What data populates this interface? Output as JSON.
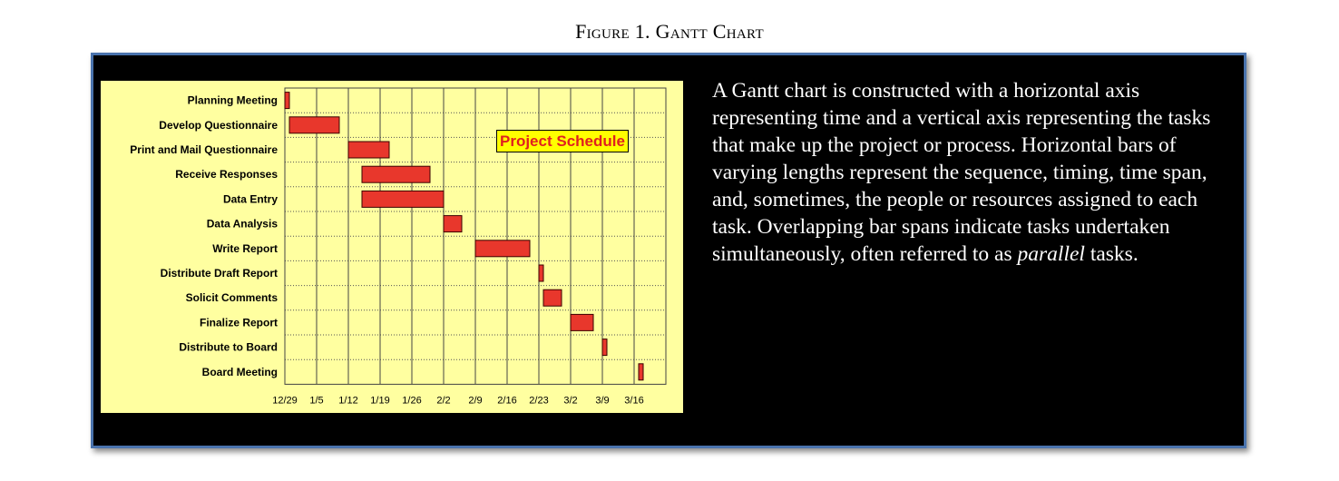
{
  "figure_title": "Figure 1. Gantt Chart",
  "description": {
    "before": "A Gantt chart is constructed with a horizontal axis representing time and a vertical axis representing the tasks that make up the project or process. Horizontal bars of varying lengths represent the sequence, timing, time span, and, sometimes, the people or resources assigned to each task. Overlapping bar spans indicate tasks undertaken simultaneously, often referred to as ",
    "emphasis": "parallel",
    "after": " tasks."
  },
  "colors": {
    "frame_background": "#000000",
    "frame_border": "#4a73ad",
    "chart_background": "#ffffa0",
    "bar_fill": "#e8372c",
    "title_box_fill": "#ffff00",
    "title_text": "#e02020"
  },
  "chart_data": {
    "type": "bar",
    "orientation": "horizontal",
    "title": "Project Schedule",
    "xlabel": "",
    "ylabel": "",
    "x_ticks": [
      "12/29",
      "1/5",
      "1/12",
      "1/19",
      "1/26",
      "2/2",
      "2/9",
      "2/16",
      "2/23",
      "3/2",
      "3/9",
      "3/16"
    ],
    "xlim": [
      "12/29",
      "3/23"
    ],
    "grid": true,
    "tasks": [
      {
        "name": "Planning Meeting",
        "start": "12/29",
        "end": "12/30"
      },
      {
        "name": "Develop Questionnaire",
        "start": "12/30",
        "end": "1/10"
      },
      {
        "name": "Print and Mail Questionnaire",
        "start": "1/12",
        "end": "1/21"
      },
      {
        "name": "Receive Responses",
        "start": "1/15",
        "end": "1/30"
      },
      {
        "name": "Data Entry",
        "start": "1/15",
        "end": "2/2"
      },
      {
        "name": "Data Analysis",
        "start": "2/2",
        "end": "2/6"
      },
      {
        "name": "Write Report",
        "start": "2/9",
        "end": "2/21"
      },
      {
        "name": "Distribute Draft Report",
        "start": "2/23",
        "end": "2/24"
      },
      {
        "name": "Solicit Comments",
        "start": "2/24",
        "end": "2/28"
      },
      {
        "name": "Finalize Report",
        "start": "3/2",
        "end": "3/7"
      },
      {
        "name": "Distribute to Board",
        "start": "3/9",
        "end": "3/10"
      },
      {
        "name": "Board Meeting",
        "start": "3/17",
        "end": "3/18"
      }
    ]
  }
}
